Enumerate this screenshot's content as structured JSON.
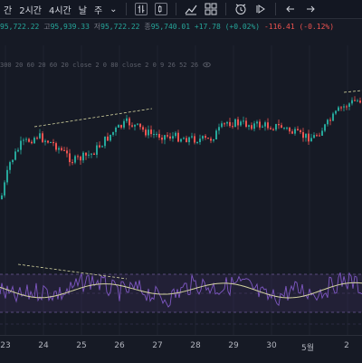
{
  "toolbar": {
    "items": [
      "간",
      "2시간",
      "4시간",
      "날",
      "주"
    ],
    "chevron": "⌄"
  },
  "ohlc": {
    "open_prefix": "",
    "open": "95,722.22",
    "high_prefix": "고",
    "high": "95,939.33",
    "low_prefix": "저",
    "low": "95,722.22",
    "close_prefix": "종",
    "close": "95,740.01",
    "change": "+17.78 (+0.02%)",
    "change2": "-116.41 (-0.12%)"
  },
  "indicator": {
    "label": "300 20 60 20 60 20 close 2 0 80 close 2 0 9 26 52 26"
  },
  "xaxis": {
    "labels": [
      "23",
      "24",
      "25",
      "26",
      "27",
      "28",
      "29",
      "30",
      "5월",
      "2"
    ]
  },
  "colors": {
    "bg": "#161a25",
    "up": "#26a69a",
    "down": "#ef5350",
    "osc": "#7e57c2",
    "signal": "#d4d4a0",
    "band": "#3a2d55"
  }
}
